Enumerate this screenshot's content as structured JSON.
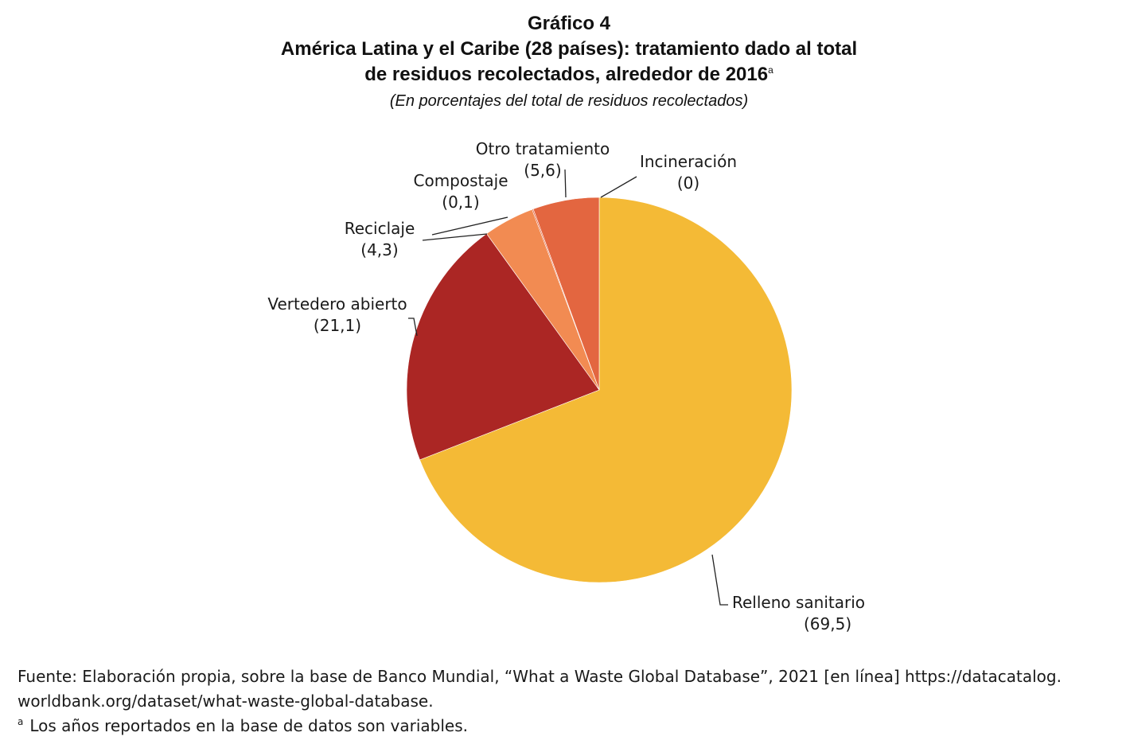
{
  "header": {
    "line1": "Gráfico 4",
    "line2": "América Latina y el Caribe (28 países): tratamiento dado al total",
    "line3": "de residuos recolectados, alrededor de 2016",
    "note_mark": "a",
    "subtitle": "(En porcentajes del total de residuos recolectados)"
  },
  "chart_data": {
    "type": "pie",
    "title": "Gráfico 4 — América Latina y el Caribe (28 países): tratamiento dado al total de residuos recolectados, alrededor de 2016",
    "unit": "En porcentajes del total de residuos recolectados",
    "start": "12 o'clock, clockwise",
    "slices": [
      {
        "label": "Relleno sanitario",
        "value": 69.5,
        "value_text": "(69,5)",
        "color": "#F4BA36"
      },
      {
        "label": "Vertedero abierto",
        "value": 21.1,
        "value_text": "(21,1)",
        "color": "#AB2624"
      },
      {
        "label": "Reciclaje",
        "value": 4.3,
        "value_text": "(4,3)",
        "color": "#F28B52"
      },
      {
        "label": "Compostaje",
        "value": 0.1,
        "value_text": "(0,1)",
        "color": "#E15A35"
      },
      {
        "label": "Otro tratamiento",
        "value": 5.6,
        "value_text": "(5,6)",
        "color": "#E36640"
      },
      {
        "label": "Incineración",
        "value": 0,
        "value_text": "(0)",
        "color": "#E36640"
      }
    ]
  },
  "footer": {
    "source_line1": "Fuente: Elaboración propia, sobre la base de Banco Mundial, “What a Waste Global Database”, 2021 [en línea] https://datacatalog.",
    "source_line2": "worldbank.org/dataset/what-waste-global-database.",
    "note_mark": "a",
    "note_text": "Los años reportados en la base de datos son variables."
  }
}
